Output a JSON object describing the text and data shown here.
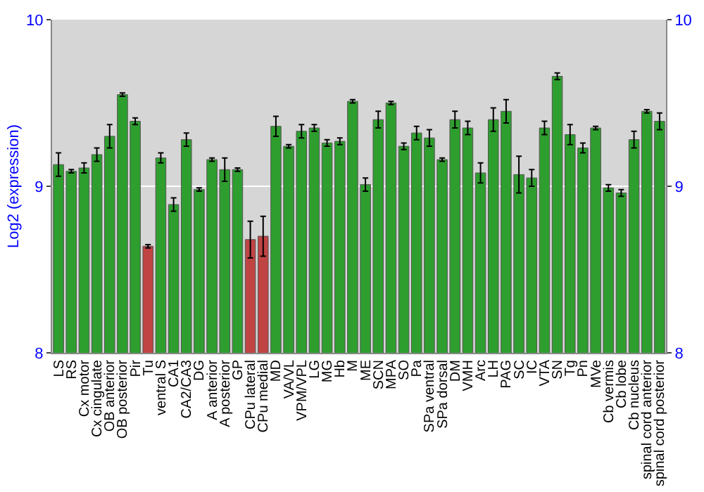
{
  "chart_data": {
    "type": "bar",
    "ylabel": "Log2 (expression)",
    "categories": [
      "LS",
      "RS",
      "Cx motor",
      "Cx cingulate",
      "OB anterior",
      "OB posterior",
      "Pir",
      "Tu",
      "ventral S",
      "CA1",
      "CA2/CA3",
      "DG",
      "A anterior",
      "A posterior",
      "GP",
      "CPu lateral",
      "CPu medial",
      "MD",
      "VA/VL",
      "VPM/VPL",
      "LG",
      "MG",
      "Hb",
      "M",
      "ME",
      "SCN",
      "MPA",
      "SO",
      "Pa",
      "SPa ventral",
      "SPa dorsal",
      "DM",
      "VMH",
      "Arc",
      "LH",
      "PAG",
      "SC",
      "IC",
      "VTA",
      "SN",
      "Tg",
      "Pn",
      "MVe",
      "Cb vermis",
      "Cb lobe",
      "Cb nucleus",
      "spinal cord anterior",
      "spinal cord posterior"
    ],
    "values": [
      9.13,
      9.09,
      9.11,
      9.19,
      9.3,
      9.55,
      9.39,
      8.64,
      9.17,
      8.89,
      9.28,
      8.98,
      9.16,
      9.1,
      9.1,
      8.68,
      8.7,
      9.36,
      9.24,
      9.33,
      9.35,
      9.26,
      9.27,
      9.51,
      9.01,
      9.4,
      9.5,
      9.24,
      9.32,
      9.29,
      9.16,
      9.4,
      9.35,
      9.08,
      9.4,
      9.45,
      9.07,
      9.05,
      9.35,
      9.66,
      9.31,
      9.23,
      9.35,
      8.99,
      8.96,
      9.28,
      9.45,
      9.39
    ],
    "errors": [
      0.07,
      0.01,
      0.03,
      0.04,
      0.07,
      0.01,
      0.02,
      0.01,
      0.03,
      0.04,
      0.04,
      0.01,
      0.01,
      0.07,
      0.01,
      0.11,
      0.12,
      0.06,
      0.01,
      0.04,
      0.02,
      0.02,
      0.02,
      0.01,
      0.04,
      0.05,
      0.01,
      0.02,
      0.04,
      0.05,
      0.01,
      0.05,
      0.04,
      0.06,
      0.07,
      0.07,
      0.11,
      0.05,
      0.04,
      0.02,
      0.06,
      0.03,
      0.01,
      0.02,
      0.02,
      0.05,
      0.01,
      0.05
    ],
    "colors": [
      "#2e9e2e",
      "#2e9e2e",
      "#2e9e2e",
      "#2e9e2e",
      "#2e9e2e",
      "#2e9e2e",
      "#2e9e2e",
      "#c04444",
      "#2e9e2e",
      "#2e9e2e",
      "#2e9e2e",
      "#2e9e2e",
      "#2e9e2e",
      "#2e9e2e",
      "#2e9e2e",
      "#c04444",
      "#c04444",
      "#2e9e2e",
      "#2e9e2e",
      "#2e9e2e",
      "#2e9e2e",
      "#2e9e2e",
      "#2e9e2e",
      "#2e9e2e",
      "#2e9e2e",
      "#2e9e2e",
      "#2e9e2e",
      "#2e9e2e",
      "#2e9e2e",
      "#2e9e2e",
      "#2e9e2e",
      "#2e9e2e",
      "#2e9e2e",
      "#2e9e2e",
      "#2e9e2e",
      "#2e9e2e",
      "#2e9e2e",
      "#2e9e2e",
      "#2e9e2e",
      "#2e9e2e",
      "#2e9e2e",
      "#2e9e2e",
      "#2e9e2e",
      "#2e9e2e",
      "#2e9e2e",
      "#2e9e2e",
      "#2e9e2e",
      "#2e9e2e"
    ],
    "ylim": [
      8,
      10
    ],
    "yticks": [
      8,
      9,
      10
    ],
    "y2lim": [
      8,
      10
    ],
    "y2ticks": [
      8,
      9,
      10
    ],
    "grid": "y"
  }
}
